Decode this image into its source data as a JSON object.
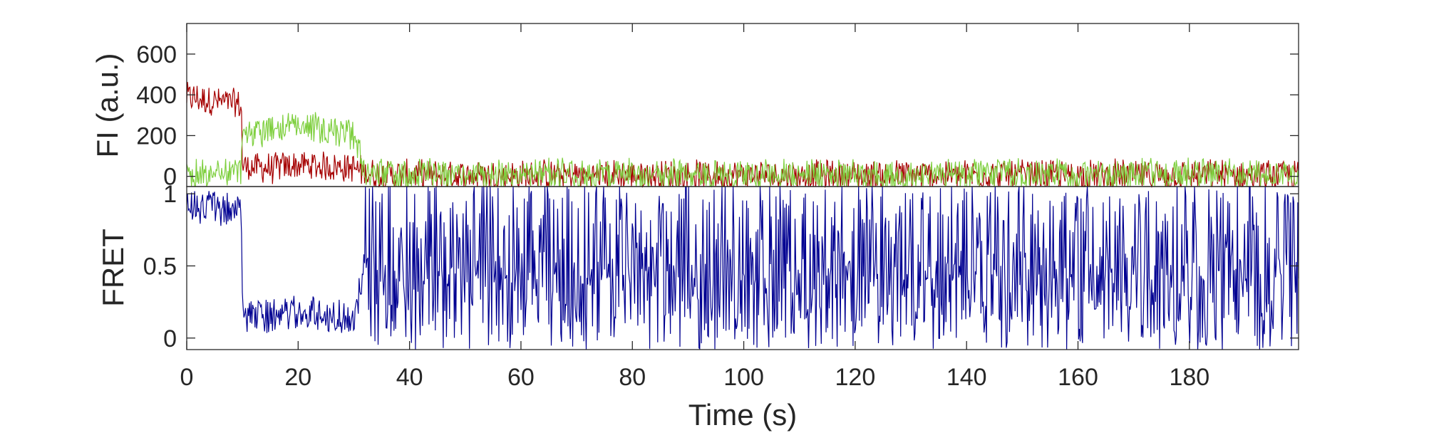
{
  "chart_data": [
    {
      "type": "line",
      "panel": "top",
      "ylabel": "FI (a.u.)",
      "xlim": [
        0,
        199.6
      ],
      "ylim": [
        -50,
        750
      ],
      "yticks": [
        0,
        200,
        400,
        600
      ],
      "ytick_labels": [
        "0",
        "200",
        "400",
        "600"
      ],
      "grid": false,
      "legend": "none",
      "series": [
        {
          "color": "#a50000",
          "x": [
            0,
            5,
            9.8,
            10,
            15,
            20,
            25,
            30,
            32,
            35,
            40,
            60,
            80,
            100,
            120,
            140,
            160,
            180,
            199
          ],
          "y": [
            390,
            370,
            350,
            50,
            40,
            55,
            50,
            40,
            20,
            10,
            5,
            5,
            5,
            5,
            5,
            5,
            5,
            5,
            5
          ]
        },
        {
          "color": "#7ecf3e",
          "x": [
            0,
            5,
            9.8,
            10,
            15,
            20,
            25,
            30,
            32,
            35,
            40,
            60,
            80,
            100,
            120,
            140,
            160,
            180,
            199
          ],
          "y": [
            10,
            20,
            20,
            200,
            230,
            240,
            225,
            210,
            15,
            10,
            10,
            10,
            10,
            10,
            10,
            10,
            10,
            10,
            10
          ]
        }
      ]
    },
    {
      "type": "line",
      "panel": "bottom",
      "xlabel": "Time (s)",
      "ylabel": "FRET",
      "xlim": [
        0,
        199.6
      ],
      "ylim": [
        -0.08,
        1.05
      ],
      "xticks": [
        0,
        20,
        40,
        60,
        80,
        100,
        120,
        140,
        160,
        180
      ],
      "xtick_labels": [
        "0",
        "20",
        "40",
        "60",
        "80",
        "100",
        "120",
        "140",
        "160",
        "180"
      ],
      "yticks": [
        0,
        0.5,
        1
      ],
      "ytick_labels": [
        "0",
        "0.5",
        "1"
      ],
      "grid": false,
      "legend": "none",
      "series": [
        {
          "color": "#000091",
          "x": [
            0,
            5,
            9.8,
            10,
            15,
            20,
            25,
            30,
            32,
            40,
            60,
            80,
            100,
            120,
            140,
            160,
            180,
            199
          ],
          "y": [
            0.92,
            0.9,
            0.88,
            0.15,
            0.15,
            0.18,
            0.16,
            0.14,
            0.5,
            0.5,
            0.5,
            0.5,
            0.5,
            0.5,
            0.5,
            0.5,
            0.5,
            0.5
          ]
        }
      ]
    }
  ]
}
